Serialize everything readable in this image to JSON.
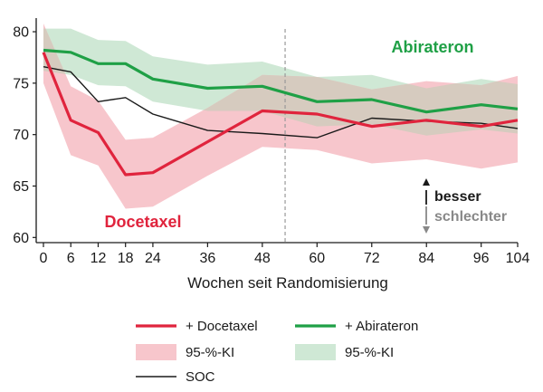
{
  "chart_data": {
    "type": "line",
    "xlabel": "Wochen seit Randomisierung",
    "ylabel": "",
    "x_ticks": [
      0,
      6,
      12,
      18,
      24,
      36,
      48,
      60,
      72,
      84,
      96,
      104
    ],
    "x_tick_labels": [
      "0",
      "6",
      "12",
      "18",
      "24",
      "36",
      "48",
      "60",
      "72",
      "84",
      "96",
      "104"
    ],
    "y_ticks": [
      60,
      65,
      70,
      75,
      80
    ],
    "y_tick_labels": [
      "60",
      "65",
      "70",
      "75",
      "80"
    ],
    "ylim": [
      59.5,
      81.5
    ],
    "xlim": [
      0,
      104
    ],
    "grid": false,
    "vline_x": 53,
    "series": [
      {
        "name": "+ Docetaxel",
        "label": "Docetaxel",
        "color": "#e0243d",
        "x": [
          0,
          6,
          12,
          18,
          24,
          36,
          48,
          60,
          72,
          84,
          96,
          104
        ],
        "y": [
          78.0,
          71.4,
          70.2,
          66.1,
          66.3,
          69.3,
          72.3,
          72.0,
          70.8,
          71.4,
          70.8,
          71.4
        ],
        "ci_lower": [
          75.0,
          68.0,
          67.0,
          62.8,
          63.0,
          66.0,
          68.8,
          68.5,
          67.2,
          67.6,
          66.7,
          67.3
        ],
        "ci_upper": [
          80.8,
          74.7,
          73.3,
          69.5,
          69.7,
          72.6,
          75.8,
          75.6,
          74.4,
          75.2,
          74.8,
          75.7
        ]
      },
      {
        "name": "+ Abirateron",
        "label": "Abirateron",
        "color": "#1fa046",
        "x": [
          0,
          6,
          12,
          18,
          24,
          36,
          48,
          60,
          72,
          84,
          96,
          104
        ],
        "y": [
          78.2,
          78.0,
          76.9,
          76.9,
          75.4,
          74.5,
          74.7,
          73.2,
          73.4,
          72.2,
          72.9,
          72.5
        ],
        "ci_lower": [
          76.2,
          75.8,
          74.8,
          74.7,
          73.2,
          72.3,
          72.3,
          70.8,
          71.0,
          69.9,
          70.5,
          70.1
        ],
        "ci_upper": [
          80.3,
          80.3,
          79.2,
          79.1,
          77.6,
          76.8,
          77.1,
          75.6,
          75.8,
          74.5,
          75.4,
          74.9
        ]
      },
      {
        "name": "SOC",
        "color": "#1a1a1a",
        "x": [
          0,
          6,
          12,
          18,
          24,
          36,
          48,
          60,
          72,
          84,
          96,
          104
        ],
        "y": [
          76.6,
          76.1,
          73.2,
          73.6,
          72.0,
          70.4,
          70.1,
          69.7,
          71.6,
          71.3,
          71.1,
          70.6
        ]
      }
    ],
    "notes": {
      "better": "besser",
      "worse": "schlechter"
    },
    "legend": {
      "placement": "bottom",
      "items": [
        {
          "label": "+ Docetaxel",
          "kind": "line",
          "color": "#e0243d"
        },
        {
          "label": "+ Abirateron",
          "kind": "line",
          "color": "#1fa046"
        },
        {
          "label": "95-%-KI",
          "kind": "band",
          "color": "#f7c6cc"
        },
        {
          "label": "95-%-KI",
          "kind": "band",
          "color": "#cfe8d5"
        },
        {
          "label": "SOC",
          "kind": "line",
          "color": "#1a1a1a"
        }
      ]
    },
    "colors": {
      "docetaxel_band": "#f7c6cc",
      "abirateron_band": "#cfe8d5",
      "overlap_band": "#d6cbbf",
      "better_arrow": "#1a1a1a",
      "worse_arrow": "#888888",
      "vline": "#999999"
    }
  }
}
